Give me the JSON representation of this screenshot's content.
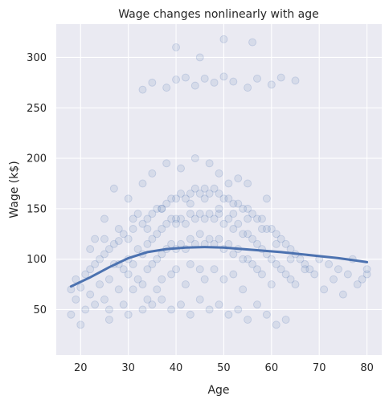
{
  "chart_data": {
    "type": "scatter",
    "title": "Wage changes nonlinearly with age",
    "xlabel": "Age",
    "ylabel": "Wage (k$)",
    "xlim": [
      14.9,
      83.1
    ],
    "ylim": [
      5,
      333
    ],
    "xticks": [
      20,
      30,
      40,
      50,
      60,
      70,
      80
    ],
    "yticks": [
      50,
      100,
      150,
      200,
      250,
      300
    ],
    "grid": true,
    "background": "#eaeaf2",
    "colors": {
      "series": "#4c72b0",
      "grid": "#ffffff"
    },
    "series": [
      {
        "kind": "scatter",
        "x": [
          18,
          18,
          19,
          19,
          20,
          20,
          21,
          21,
          22,
          22,
          23,
          23,
          23,
          24,
          24,
          25,
          25,
          25,
          26,
          26,
          26,
          27,
          27,
          27,
          28,
          28,
          28,
          29,
          29,
          29,
          30,
          30,
          30,
          30,
          31,
          31,
          31,
          32,
          32,
          32,
          33,
          33,
          33,
          33,
          34,
          34,
          34,
          34,
          35,
          35,
          35,
          35,
          36,
          36,
          36,
          36,
          37,
          37,
          37,
          37,
          38,
          38,
          38,
          38,
          39,
          39,
          39,
          39,
          40,
          40,
          40,
          40,
          41,
          41,
          41,
          41,
          42,
          42,
          42,
          42,
          43,
          43,
          43,
          43,
          44,
          44,
          44,
          44,
          45,
          45,
          45,
          45,
          46,
          46,
          46,
          46,
          47,
          47,
          47,
          47,
          48,
          48,
          48,
          48,
          49,
          49,
          49,
          49,
          50,
          50,
          50,
          50,
          51,
          51,
          51,
          51,
          52,
          52,
          52,
          52,
          53,
          53,
          53,
          53,
          54,
          54,
          54,
          54,
          55,
          55,
          55,
          55,
          56,
          56,
          56,
          57,
          57,
          57,
          58,
          58,
          58,
          59,
          59,
          59,
          60,
          60,
          60,
          61,
          61,
          62,
          62,
          63,
          63,
          64,
          64,
          65,
          65,
          66,
          67,
          68,
          69,
          70,
          71,
          72,
          73,
          74,
          75,
          76,
          77,
          78,
          79,
          80,
          80,
          22,
          25,
          28,
          31,
          34,
          37,
          40,
          43,
          46,
          49,
          52,
          55,
          58,
          61,
          64,
          67,
          26,
          30,
          33,
          35,
          37,
          39,
          41,
          43,
          45,
          47,
          49,
          51,
          53,
          55,
          57,
          59,
          61,
          63,
          33,
          35,
          38,
          40,
          42,
          44,
          46,
          48,
          50,
          52,
          55,
          57,
          60,
          62,
          65,
          40,
          45,
          50,
          56
        ],
        "y": [
          70,
          45,
          80,
          60,
          72,
          35,
          85,
          50,
          90,
          65,
          95,
          55,
          120,
          100,
          75,
          105,
          60,
          140,
          110,
          80,
          50,
          115,
          95,
          170,
          118,
          70,
          130,
          125,
          90,
          55,
          120,
          100,
          85,
          160,
          130,
          95,
          70,
          145,
          110,
          80,
          135,
          105,
          75,
          175,
          140,
          115,
          90,
          60,
          145,
          120,
          95,
          185,
          150,
          125,
          100,
          70,
          150,
          130,
          105,
          80,
          155,
          135,
          110,
          195,
          160,
          140,
          115,
          85,
          160,
          135,
          110,
          90,
          165,
          140,
          115,
          190,
          160,
          135,
          110,
          75,
          165,
          145,
          120,
          95,
          170,
          140,
          115,
          200,
          165,
          145,
          125,
          90,
          170,
          140,
          115,
          80,
          165,
          145,
          120,
          195,
          170,
          140,
          115,
          90,
          165,
          145,
          120,
          185,
          160,
          135,
          110,
          80,
          160,
          140,
          115,
          175,
          155,
          130,
          105,
          85,
          155,
          135,
          110,
          180,
          150,
          125,
          100,
          70,
          150,
          125,
          100,
          175,
          145,
          120,
          95,
          140,
          115,
          90,
          140,
          110,
          85,
          130,
          105,
          160,
          130,
          100,
          75,
          125,
          95,
          120,
          90,
          115,
          85,
          110,
          80,
          105,
          75,
          100,
          95,
          90,
          85,
          100,
          70,
          95,
          80,
          90,
          65,
          85,
          100,
          75,
          80,
          85,
          90,
          110,
          120,
          95,
          140,
          130,
          150,
          140,
          155,
          160,
          150,
          145,
          140,
          130,
          115,
          100,
          90,
          40,
          45,
          50,
          55,
          60,
          50,
          55,
          45,
          60,
          50,
          55,
          45,
          50,
          40,
          55,
          45,
          35,
          40,
          268,
          275,
          270,
          278,
          280,
          272,
          279,
          275,
          281,
          276,
          270,
          279,
          273,
          280,
          277,
          310,
          300,
          318,
          315
        ],
        "name": ""
      },
      {
        "kind": "line",
        "x": [
          18,
          22,
          26,
          30,
          34,
          38,
          42,
          46,
          50,
          54,
          58,
          62,
          66,
          70,
          74,
          78,
          80
        ],
        "y": [
          73,
          82,
          92,
          101,
          107,
          110,
          111.5,
          112,
          111.5,
          110,
          108.5,
          107,
          105,
          103,
          101,
          98.5,
          97
        ],
        "name": ""
      }
    ]
  }
}
